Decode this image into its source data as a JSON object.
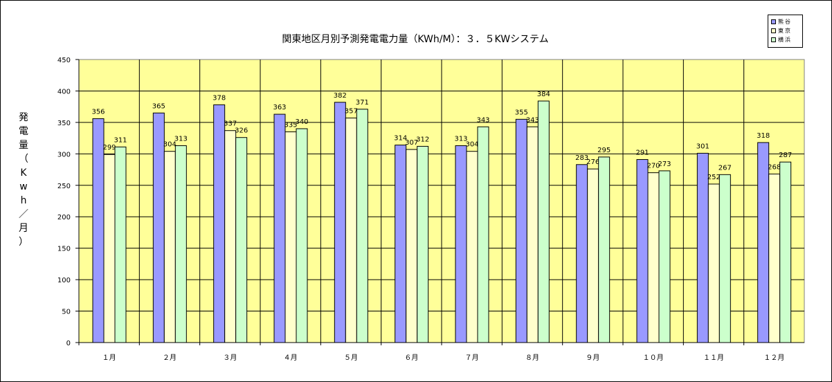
{
  "chart_data": {
    "type": "bar",
    "title": "関東地区月別予測発電電力量（KWh/M）：３．５KWシステム",
    "ylabel": "発電量（Kwh／月）",
    "xlabel": "",
    "ylim": [
      0,
      450
    ],
    "yticks": [
      0,
      50,
      100,
      150,
      200,
      250,
      300,
      350,
      400,
      450
    ],
    "grid": true,
    "legend_position": "top-right",
    "categories": [
      "１月",
      "２月",
      "３月",
      "４月",
      "５月",
      "６月",
      "７月",
      "８月",
      "９月",
      "１０月",
      "１１月",
      "１２月"
    ],
    "series": [
      {
        "name": "熊谷",
        "color": "#9999ff",
        "values": [
          356,
          365,
          378,
          363,
          382,
          314,
          313,
          355,
          283,
          291,
          301,
          318
        ]
      },
      {
        "name": "東京",
        "color": "#ffffcc",
        "values": [
          299,
          304,
          337,
          335,
          357,
          307,
          304,
          343,
          276,
          270,
          252,
          268
        ]
      },
      {
        "name": "横浜",
        "color": "#ccffcc",
        "values": [
          311,
          313,
          326,
          340,
          371,
          312,
          343,
          384,
          295,
          273,
          267,
          287
        ]
      }
    ],
    "plot_background": "#ffff99"
  }
}
